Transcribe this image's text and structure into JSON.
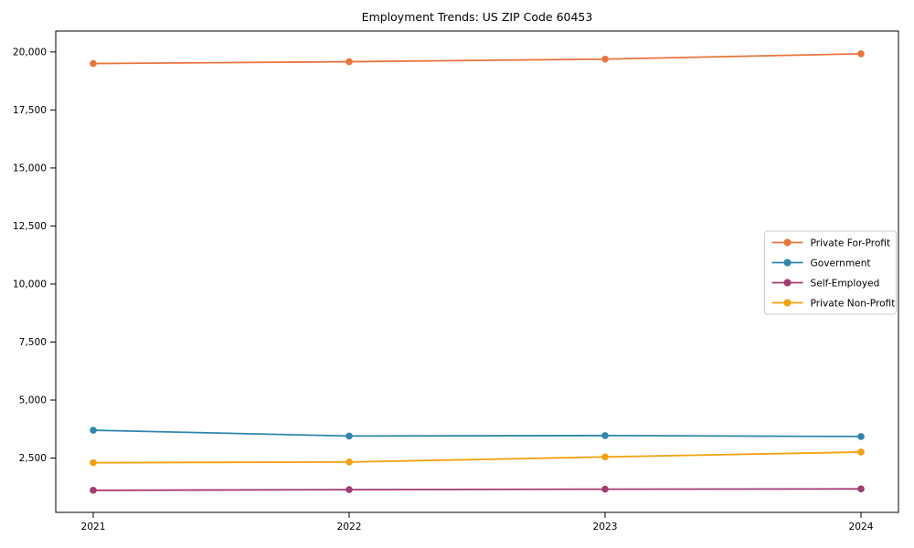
{
  "page": {
    "background_color": "#ffffff",
    "axis_color": "#000000",
    "text_color": "#000000"
  },
  "chart_data": {
    "type": "line",
    "title": "Employment Trends: US ZIP Code 60453",
    "xlabel": "",
    "ylabel": "",
    "categories": [
      "2021",
      "2022",
      "2023",
      "2024"
    ],
    "series": [
      {
        "name": "Private For-Profit",
        "color": "#e8743e",
        "marker": "circle",
        "values": [
          19500,
          19580,
          19690,
          19920
        ]
      },
      {
        "name": "Government",
        "color": "#2e86ab",
        "marker": "circle",
        "values": [
          3700,
          3450,
          3470,
          3430
        ]
      },
      {
        "name": "Self-Employed",
        "color": "#a23b72",
        "marker": "circle",
        "values": [
          1110,
          1140,
          1160,
          1170
        ]
      },
      {
        "name": "Private Non-Profit",
        "color": "#f5a00f",
        "marker": "circle",
        "values": [
          2300,
          2330,
          2550,
          2760
        ]
      }
    ],
    "yticks": [
      2500,
      5000,
      7500,
      10000,
      12500,
      15000,
      17500,
      20000
    ],
    "ytick_labels": [
      "2,500",
      "5,000",
      "7,500",
      "10,000",
      "12,500",
      "15,000",
      "17,500",
      "20,000"
    ],
    "ylim": [
      160,
      20900
    ],
    "grid": false,
    "legend": {
      "position": "center right",
      "border_color": "#cccccc",
      "background_color": "#ffffff",
      "entries": [
        "Private For-Profit",
        "Government",
        "Self-Employed",
        "Private Non-Profit"
      ]
    }
  }
}
